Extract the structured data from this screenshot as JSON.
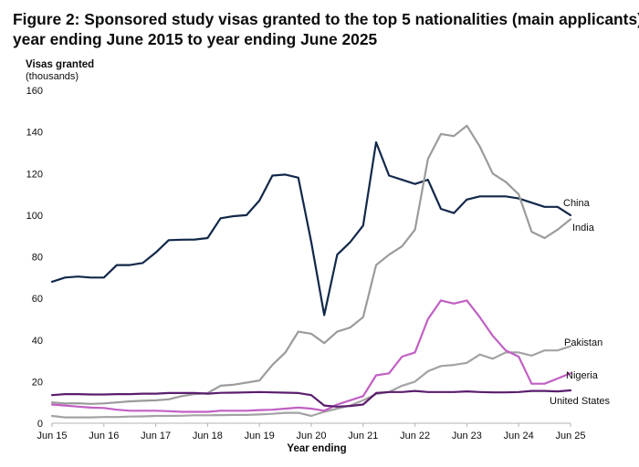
{
  "title_line1": "Figure 2: Sponsored study visas granted to the top 5 nationalities (main applicants),",
  "title_line2": "year ending June 2015 to year ending June 2025",
  "chart_data": {
    "type": "line",
    "ylabel_line1": "Visas granted",
    "ylabel_line2": "(thousands)",
    "xlabel": "Year ending",
    "ylim": [
      0,
      160
    ],
    "yticks": [
      0,
      20,
      40,
      60,
      80,
      100,
      120,
      140,
      160
    ],
    "xtick_labels": [
      "Jun 15",
      "Jun 16",
      "Jun 17",
      "Jun 18",
      "Jun 19",
      "Jun 20",
      "Jun 21",
      "Jun 22",
      "Jun 23",
      "Jun 24",
      "Jun 25"
    ],
    "points_per_year": 4,
    "series": [
      {
        "name": "China",
        "color": "#12284a",
        "values": [
          68,
          70,
          70.5,
          70,
          70,
          76,
          76,
          77,
          82,
          88,
          88.2,
          88.3,
          89,
          98.5,
          99.5,
          100,
          107,
          119,
          119.5,
          118,
          87,
          52,
          81,
          87,
          95,
          135,
          119,
          117,
          115,
          117,
          103,
          101,
          107.5,
          109,
          109,
          109,
          108,
          106,
          104,
          104,
          100
        ]
      },
      {
        "name": "India",
        "color": "#9b9b9b",
        "values": [
          10,
          9.5,
          9.6,
          9.3,
          9.5,
          10,
          10.5,
          10.8,
          11,
          11.5,
          13,
          14,
          14.5,
          18,
          18.5,
          19.5,
          20.5,
          28,
          34,
          44,
          43,
          38.5,
          44,
          46,
          51,
          76,
          81,
          85,
          93,
          127,
          139,
          138,
          143,
          133,
          120,
          116,
          110,
          92,
          89,
          93,
          98
        ]
      },
      {
        "name": "Pakistan",
        "color": "#a3a3a3",
        "values": [
          3.5,
          2.8,
          2.8,
          2.8,
          3,
          3,
          3.2,
          3.3,
          3.5,
          3.5,
          3.6,
          3.8,
          3.8,
          3.9,
          4,
          4,
          4.2,
          4.5,
          5,
          5,
          3.5,
          5.5,
          7,
          8.5,
          11,
          14,
          15,
          18,
          20,
          25,
          27.5,
          28,
          29,
          33,
          31,
          34,
          34,
          32.5,
          35,
          35,
          37
        ]
      },
      {
        "name": "Nigeria",
        "color": "#c15fc4",
        "values": [
          9,
          8.5,
          8,
          7.5,
          7.3,
          6.5,
          6,
          6,
          6,
          5.8,
          5.5,
          5.5,
          5.5,
          6,
          6,
          6,
          6.3,
          6.5,
          7,
          7.5,
          7,
          6,
          9,
          11,
          13,
          23,
          24,
          32,
          34,
          50,
          59,
          57.5,
          59,
          51,
          42,
          35,
          32,
          19,
          19,
          21.5,
          24
        ]
      },
      {
        "name": "United States",
        "color": "#5a1d6e",
        "values": [
          13.5,
          14,
          14,
          13.8,
          13.8,
          14,
          14,
          14.2,
          14.2,
          14.5,
          14.5,
          14.5,
          14.2,
          14.6,
          14.7,
          14.8,
          15,
          14.8,
          14.7,
          14.5,
          13.5,
          8.5,
          8,
          8.3,
          9,
          14.5,
          15,
          15,
          15.5,
          15,
          15,
          15,
          15.3,
          15,
          14.8,
          14.8,
          15,
          15.5,
          15.5,
          15.3,
          15.8
        ]
      }
    ]
  }
}
